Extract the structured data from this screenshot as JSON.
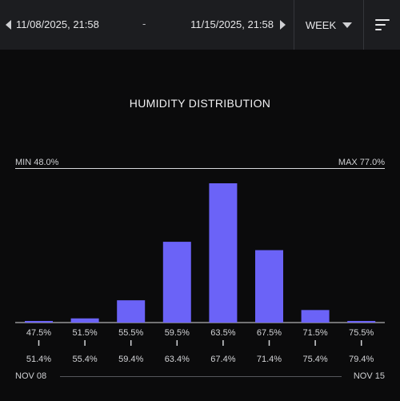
{
  "header": {
    "start_date": "11/08/2025, 21:58",
    "separator": "-",
    "end_date": "11/15/2025, 21:58",
    "period": "WEEK",
    "icons": {
      "prev": "chevron-left-icon",
      "next": "chevron-right-icon",
      "period_dropdown": "caret-down-icon",
      "menu": "sort-lines-icon"
    }
  },
  "title": "HUMIDITY DISTRIBUTION",
  "min_label": "MIN 48.0%",
  "max_label": "MAX 77.0%",
  "footer": {
    "start": "NOV 08",
    "end": "NOV 15"
  },
  "colors": {
    "bar": "#6b63f7",
    "background": "#0b0b0c",
    "topbar": "#1c1d20"
  },
  "chart_data": {
    "type": "bar",
    "title": "HUMIDITY DISTRIBUTION",
    "bins": [
      {
        "from": "47.5%",
        "to": "51.4%",
        "value": 1
      },
      {
        "from": "51.5%",
        "to": "55.4%",
        "value": 3
      },
      {
        "from": "55.5%",
        "to": "59.4%",
        "value": 16
      },
      {
        "from": "59.5%",
        "to": "63.4%",
        "value": 58
      },
      {
        "from": "63.5%",
        "to": "67.4%",
        "value": 100
      },
      {
        "from": "67.5%",
        "to": "71.4%",
        "value": 52
      },
      {
        "from": "71.5%",
        "to": "75.4%",
        "value": 9
      },
      {
        "from": "75.5%",
        "to": "79.4%",
        "value": 1
      }
    ],
    "ylim": [
      0,
      100
    ],
    "grid": false
  }
}
